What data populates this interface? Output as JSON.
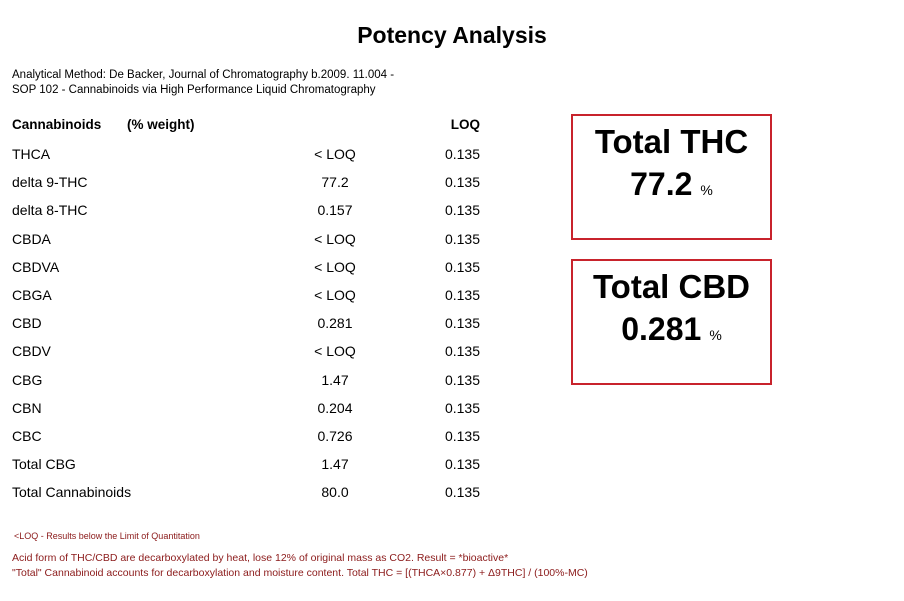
{
  "title": "Potency Analysis",
  "method": {
    "line1": "Analytical Method: De Backer, Journal of Chromatography b.2009. 11.004 -",
    "line2": "SOP 102 - Cannabinoids via High Performance Liquid Chromatography"
  },
  "table": {
    "header_name": "Cannabinoids",
    "header_unit": "(% weight)",
    "header_loq": "LOQ",
    "rows": [
      {
        "name": "THCA",
        "value": "< LOQ",
        "loq": "0.135"
      },
      {
        "name": "delta 9-THC",
        "value": "77.2",
        "loq": "0.135"
      },
      {
        "name": "delta 8-THC",
        "value": "0.157",
        "loq": "0.135"
      },
      {
        "name": "CBDA",
        "value": "< LOQ",
        "loq": "0.135"
      },
      {
        "name": "CBDVA",
        "value": "< LOQ",
        "loq": "0.135"
      },
      {
        "name": "CBGA",
        "value": "< LOQ",
        "loq": "0.135"
      },
      {
        "name": "CBD",
        "value": "0.281",
        "loq": "0.135"
      },
      {
        "name": "CBDV",
        "value": "< LOQ",
        "loq": "0.135"
      },
      {
        "name": "CBG",
        "value": "1.47",
        "loq": "0.135"
      },
      {
        "name": "CBN",
        "value": "0.204",
        "loq": "0.135"
      },
      {
        "name": "CBC",
        "value": "0.726",
        "loq": "0.135"
      },
      {
        "name": "Total CBG",
        "value": "1.47",
        "loq": "0.135"
      },
      {
        "name": "Total Cannabinoids",
        "value": "80.0",
        "loq": "0.135"
      }
    ]
  },
  "total_thc": {
    "label": "Total THC",
    "value": "77.2",
    "unit": "%"
  },
  "total_cbd": {
    "label": "Total CBD",
    "value": "0.281",
    "unit": "%"
  },
  "notes": {
    "loq_note": "<LOQ - Results below the Limit of Quantitation",
    "acid_note": "Acid form of THC/CBD are decarboxylated by heat, lose 12% of original mass as CO2. Result = *bioactive*",
    "total_note": "\"Total\" Cannabinoid  accounts for decarboxylation and moisture content.  Total THC = [(THCA×0.877) + Δ9THC] / (100%-MC)"
  },
  "colors": {
    "accent": "#c8232c",
    "note_text": "#8b1a1a"
  }
}
